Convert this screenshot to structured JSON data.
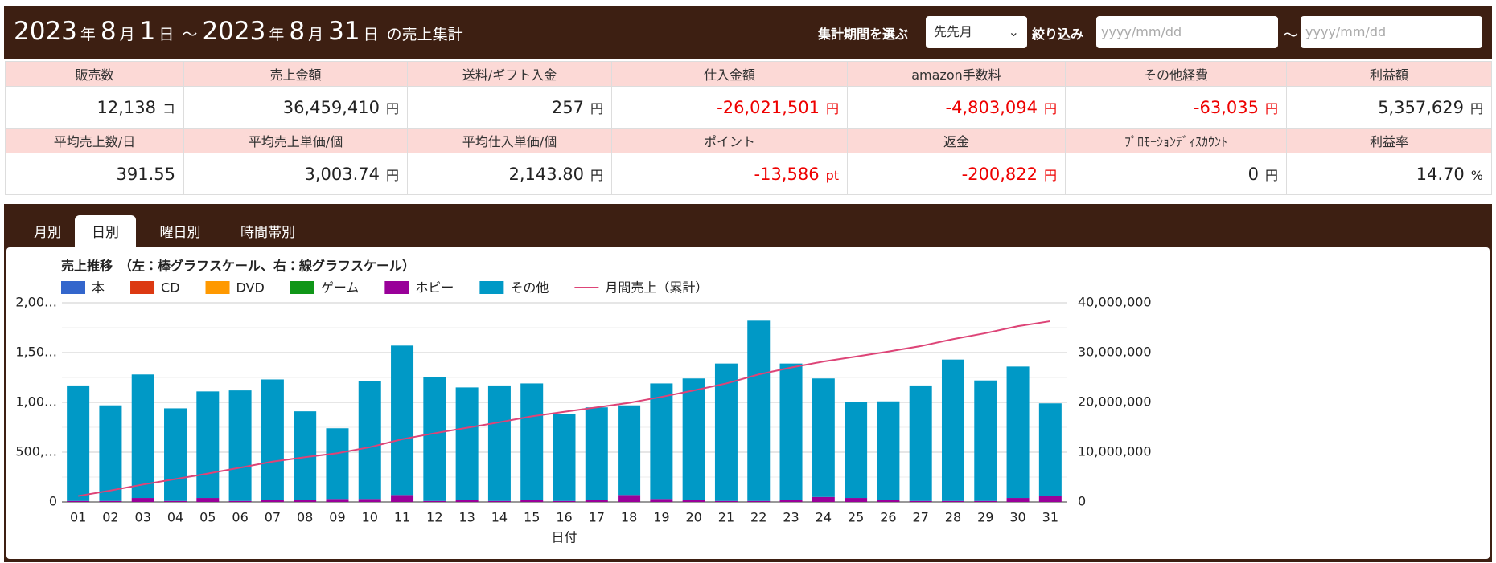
{
  "header": {
    "title_parts": [
      "2023",
      "年",
      "8",
      "月",
      "1",
      "日",
      "～",
      "2023",
      "年",
      "8",
      "月",
      "31",
      "日",
      "の売上集計"
    ],
    "period_label": "集計期間を選ぶ",
    "period_option": "先先月",
    "filter_label": "絞り込み",
    "date_placeholder_from": "yyyy/mm/dd",
    "range_sep": "～",
    "date_placeholder_to": "yyyy/mm/dd"
  },
  "summary": {
    "rows": [
      {
        "headers": [
          "販売数",
          "売上金額",
          "送料/ギフト入金",
          "仕入金額",
          "amazon手数料",
          "その他経費",
          "利益額"
        ],
        "cells": [
          {
            "value": "12,138",
            "unit": "コ"
          },
          {
            "value": "36,459,410",
            "unit": "円"
          },
          {
            "value": "257",
            "unit": "円"
          },
          {
            "value": "-26,021,501",
            "unit": "円"
          },
          {
            "value": "-4,803,094",
            "unit": "円"
          },
          {
            "value": "-63,035",
            "unit": "円"
          },
          {
            "value": "5,357,629",
            "unit": "円"
          }
        ]
      },
      {
        "headers": [
          "平均売上数/日",
          "平均売上単価/個",
          "平均仕入単価/個",
          "ポイント",
          "返金",
          "ﾌﾟﾛﾓｰｼｮﾝﾃﾞｨｽｶｳﾝﾄ",
          "利益率"
        ],
        "cells": [
          {
            "value": "391.55",
            "unit": ""
          },
          {
            "value": "3,003.74",
            "unit": "円"
          },
          {
            "value": "2,143.80",
            "unit": "円"
          },
          {
            "value": "-13,586",
            "unit": "pt"
          },
          {
            "value": "-200,822",
            "unit": "円"
          },
          {
            "value": "0",
            "unit": "円"
          },
          {
            "value": "14.70",
            "unit": "%"
          }
        ]
      }
    ]
  },
  "tabs": [
    "月別",
    "日別",
    "曜日別",
    "時間帯別"
  ],
  "chart_data": {
    "type": "bar",
    "stacked": true,
    "grid": true,
    "title": "売上推移　（左：棒グラフスケール、右：線グラフスケール）",
    "x_label": "日付",
    "categories": [
      "01",
      "02",
      "03",
      "04",
      "05",
      "06",
      "07",
      "08",
      "09",
      "10",
      "11",
      "12",
      "13",
      "14",
      "15",
      "16",
      "17",
      "18",
      "19",
      "20",
      "21",
      "22",
      "23",
      "24",
      "25",
      "26",
      "27",
      "28",
      "29",
      "30",
      "31"
    ],
    "ylim": [
      0,
      2000
    ],
    "yticks": [
      0,
      {
        "value": 500,
        "label": "500,…"
      },
      {
        "value": 1000,
        "label": "1,00…"
      },
      {
        "value": 1500,
        "label": "1,50…"
      },
      {
        "value": 2000,
        "label": "2,00…"
      }
    ],
    "y2lim": [
      0,
      40000000
    ],
    "y2ticks": [
      0,
      {
        "value": 10000000,
        "label": "10,000,000"
      },
      {
        "value": 20000000,
        "label": "20,000,000"
      },
      {
        "value": 30000000,
        "label": "30,000,000"
      },
      {
        "value": 40000000,
        "label": "40,000,000"
      }
    ],
    "series": [
      {
        "name": "本",
        "color": "#3366cc",
        "values": [
          0,
          0,
          0,
          0,
          0,
          0,
          0,
          0,
          0,
          0,
          0,
          0,
          0,
          0,
          0,
          0,
          0,
          0,
          0,
          0,
          0,
          0,
          0,
          0,
          0,
          0,
          0,
          0,
          0,
          0,
          0
        ]
      },
      {
        "name": "CD",
        "color": "#dc3912",
        "values": [
          0,
          0,
          0,
          0,
          0,
          0,
          0,
          0,
          0,
          0,
          0,
          0,
          0,
          0,
          0,
          0,
          0,
          0,
          0,
          0,
          0,
          0,
          0,
          0,
          0,
          0,
          0,
          0,
          0,
          0,
          0
        ]
      },
      {
        "name": "DVD",
        "color": "#ff9900",
        "values": [
          0,
          0,
          0,
          0,
          0,
          0,
          0,
          0,
          0,
          0,
          0,
          0,
          0,
          0,
          0,
          0,
          0,
          0,
          0,
          0,
          0,
          0,
          0,
          0,
          0,
          0,
          0,
          0,
          0,
          0,
          0
        ]
      },
      {
        "name": "ゲーム",
        "color": "#109618",
        "values": [
          0,
          0,
          0,
          0,
          0,
          0,
          0,
          0,
          0,
          0,
          0,
          0,
          0,
          0,
          0,
          0,
          0,
          0,
          0,
          0,
          0,
          0,
          0,
          0,
          0,
          0,
          0,
          0,
          0,
          0,
          0
        ]
      },
      {
        "name": "ホビー",
        "color": "#990099",
        "values": [
          10,
          10,
          40,
          10,
          40,
          10,
          20,
          20,
          30,
          30,
          70,
          10,
          20,
          10,
          20,
          10,
          20,
          70,
          30,
          20,
          10,
          10,
          20,
          50,
          40,
          20,
          10,
          10,
          10,
          40,
          60
        ]
      },
      {
        "name": "その他",
        "color": "#0099c6",
        "values": [
          1160,
          960,
          1240,
          930,
          1070,
          1110,
          1210,
          890,
          710,
          1180,
          1500,
          1240,
          1130,
          1160,
          1170,
          870,
          930,
          900,
          1160,
          1220,
          1380,
          1810,
          1370,
          1190,
          960,
          990,
          1160,
          1420,
          1210,
          1320,
          930
        ]
      },
      {
        "name": "月間売上（累計）",
        "color": "#dd4477",
        "type": "line",
        "axis": "y2",
        "values": [
          1200000,
          2300000,
          3500000,
          4600000,
          5700000,
          6900000,
          8100000,
          9000000,
          9800000,
          11000000,
          12600000,
          13800000,
          14900000,
          16000000,
          17200000,
          18100000,
          19000000,
          19900000,
          21100000,
          22400000,
          23800000,
          25600000,
          27000000,
          28200000,
          29200000,
          30200000,
          31300000,
          32700000,
          33900000,
          35300000,
          36300000
        ]
      }
    ]
  }
}
